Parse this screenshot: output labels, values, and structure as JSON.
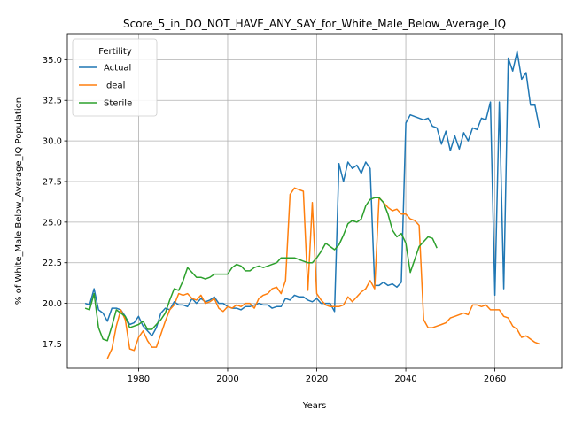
{
  "chart_data": {
    "type": "line",
    "title": "Score_5_in_DO_NOT_HAVE_ANY_SAY_for_White_Male_Below_Average_IQ",
    "xlabel": "Years",
    "ylabel": "% of White_Male Below_Average_IQ Population",
    "xlim": [
      1964,
      2075
    ],
    "ylim": [
      16.0,
      36.6
    ],
    "xticks": [
      1980,
      2000,
      2020,
      2040,
      2060
    ],
    "yticks": [
      17.5,
      20.0,
      22.5,
      25.0,
      27.5,
      30.0,
      32.5,
      35.0
    ],
    "grid": true,
    "legend": {
      "title": "Fertility",
      "placement": "top-left"
    },
    "series": [
      {
        "name": "Actual",
        "color": "#1f77b4",
        "x": [
          1968,
          1969,
          1970,
          1971,
          1972,
          1973,
          1974,
          1975,
          1976,
          1977,
          1978,
          1979,
          1980,
          1981,
          1982,
          1983,
          1984,
          1985,
          1986,
          1987,
          1988,
          1989,
          1990,
          1991,
          1992,
          1993,
          1994,
          1995,
          1996,
          1997,
          1998,
          1999,
          2000,
          2001,
          2002,
          2003,
          2004,
          2005,
          2006,
          2007,
          2008,
          2009,
          2010,
          2011,
          2012,
          2013,
          2014,
          2015,
          2016,
          2017,
          2018,
          2019,
          2020,
          2021,
          2022,
          2023,
          2024,
          2025,
          2026,
          2027,
          2028,
          2029,
          2030,
          2031,
          2032,
          2033,
          2034,
          2035,
          2036,
          2037,
          2038,
          2039,
          2040,
          2041,
          2042,
          2043,
          2044,
          2045,
          2046,
          2047,
          2048,
          2049,
          2050,
          2051,
          2052,
          2053,
          2054,
          2055,
          2056,
          2057,
          2058,
          2059,
          2060,
          2061,
          2062,
          2063,
          2064,
          2065,
          2066,
          2067,
          2068,
          2069,
          2070
        ],
        "y": [
          20.0,
          19.9,
          20.9,
          19.6,
          19.4,
          18.9,
          19.7,
          19.7,
          19.6,
          19.2,
          18.7,
          18.8,
          19.2,
          18.6,
          18.3,
          18.0,
          18.5,
          19.4,
          19.7,
          19.6,
          20.1,
          19.9,
          19.9,
          19.8,
          20.3,
          20.0,
          20.3,
          20.1,
          20.2,
          20.4,
          20.0,
          20.0,
          19.8,
          19.7,
          19.7,
          19.6,
          19.8,
          19.8,
          19.9,
          20.0,
          19.9,
          19.9,
          19.7,
          19.8,
          19.8,
          20.3,
          20.2,
          20.5,
          20.4,
          20.4,
          20.2,
          20.1,
          20.3,
          20.0,
          20.0,
          20.0,
          19.5,
          28.6,
          27.5,
          28.7,
          28.3,
          28.5,
          28.0,
          28.7,
          28.3,
          21.1,
          21.1,
          21.3,
          21.1,
          21.2,
          21.0,
          21.3,
          31.1,
          31.6,
          31.5,
          31.4,
          31.3,
          31.4,
          30.9,
          30.8,
          29.8,
          30.6,
          29.4,
          30.3,
          29.5,
          30.5,
          30.0,
          30.8,
          30.7,
          31.4,
          31.3,
          32.4,
          20.5,
          32.4,
          20.9,
          35.1,
          34.3,
          35.5,
          33.8,
          34.2,
          32.2,
          32.2,
          30.8
        ]
      },
      {
        "name": "Ideal",
        "color": "#ff7f0e",
        "x": [
          1973,
          1974,
          1975,
          1976,
          1977,
          1978,
          1979,
          1980,
          1981,
          1982,
          1983,
          1984,
          1985,
          1986,
          1987,
          1988,
          1989,
          1990,
          1991,
          1992,
          1993,
          1994,
          1995,
          1996,
          1997,
          1998,
          1999,
          2000,
          2001,
          2002,
          2003,
          2004,
          2005,
          2006,
          2007,
          2008,
          2009,
          2010,
          2011,
          2012,
          2013,
          2014,
          2015,
          2016,
          2017,
          2018,
          2019,
          2020,
          2021,
          2022,
          2023,
          2024,
          2025,
          2026,
          2027,
          2028,
          2029,
          2030,
          2031,
          2032,
          2033,
          2034,
          2035,
          2036,
          2037,
          2038,
          2039,
          2040,
          2041,
          2042,
          2043,
          2044,
          2045,
          2046,
          2047,
          2048,
          2049,
          2050,
          2051,
          2052,
          2053,
          2054,
          2055,
          2056,
          2057,
          2058,
          2059,
          2060,
          2061,
          2062,
          2063,
          2064,
          2065,
          2066,
          2067,
          2068,
          2069,
          2070
        ],
        "y": [
          16.6,
          17.2,
          18.6,
          19.6,
          19.0,
          17.2,
          17.1,
          17.9,
          18.3,
          17.7,
          17.3,
          17.3,
          18.1,
          18.9,
          19.6,
          19.9,
          20.6,
          20.5,
          20.6,
          20.3,
          20.2,
          20.5,
          20.0,
          20.1,
          20.3,
          19.7,
          19.5,
          19.8,
          19.7,
          19.9,
          19.8,
          20.0,
          20.0,
          19.7,
          20.3,
          20.5,
          20.6,
          20.9,
          21.0,
          20.6,
          21.4,
          26.7,
          27.1,
          27.0,
          26.9,
          20.8,
          26.2,
          20.6,
          20.2,
          19.9,
          19.8,
          19.8,
          19.8,
          19.9,
          20.4,
          20.1,
          20.4,
          20.7,
          20.9,
          21.4,
          20.9,
          26.5,
          26.2,
          25.9,
          25.7,
          25.8,
          25.5,
          25.5,
          25.2,
          25.1,
          24.8,
          19.0,
          18.5,
          18.5,
          18.6,
          18.7,
          18.8,
          19.1,
          19.2,
          19.3,
          19.4,
          19.3,
          19.9,
          19.9,
          19.8,
          19.9,
          19.6,
          19.6,
          19.6,
          19.2,
          19.1,
          18.6,
          18.4,
          17.9,
          18.0,
          17.8,
          17.6,
          17.5
        ]
      },
      {
        "name": "Sterile",
        "color": "#2ca02c",
        "x": [
          1968,
          1969,
          1970,
          1971,
          1972,
          1973,
          1974,
          1975,
          1976,
          1977,
          1978,
          1979,
          1980,
          1981,
          1982,
          1983,
          1984,
          1985,
          1986,
          1987,
          1988,
          1989,
          1990,
          1991,
          1992,
          1993,
          1994,
          1995,
          1996,
          1997,
          1998,
          1999,
          2000,
          2001,
          2002,
          2003,
          2004,
          2005,
          2006,
          2007,
          2008,
          2009,
          2010,
          2011,
          2012,
          2013,
          2014,
          2015,
          2016,
          2017,
          2018,
          2019,
          2020,
          2021,
          2022,
          2023,
          2024,
          2025,
          2026,
          2027,
          2028,
          2029,
          2030,
          2031,
          2032,
          2033,
          2034,
          2035,
          2036,
          2037,
          2038,
          2039,
          2040,
          2041,
          2042,
          2043,
          2044,
          2045,
          2046,
          2047
        ],
        "y": [
          19.7,
          19.6,
          20.6,
          18.5,
          17.8,
          17.7,
          18.6,
          19.6,
          19.4,
          19.2,
          18.5,
          18.6,
          18.7,
          18.9,
          18.4,
          18.4,
          18.7,
          19.0,
          19.4,
          20.2,
          20.9,
          20.8,
          21.4,
          22.2,
          21.9,
          21.6,
          21.6,
          21.5,
          21.6,
          21.8,
          21.8,
          21.8,
          21.8,
          22.2,
          22.4,
          22.3,
          22.0,
          22.0,
          22.2,
          22.3,
          22.2,
          22.3,
          22.4,
          22.5,
          22.8,
          22.8,
          22.8,
          22.8,
          22.7,
          22.6,
          22.5,
          22.5,
          22.8,
          23.2,
          23.7,
          23.5,
          23.3,
          23.6,
          24.2,
          24.9,
          25.1,
          25.0,
          25.2,
          26.0,
          26.4,
          26.5,
          26.5,
          26.2,
          25.5,
          24.5,
          24.1,
          24.3,
          23.7,
          21.9,
          22.7,
          23.5,
          23.8,
          24.1,
          24.0,
          23.4
        ]
      }
    ]
  }
}
